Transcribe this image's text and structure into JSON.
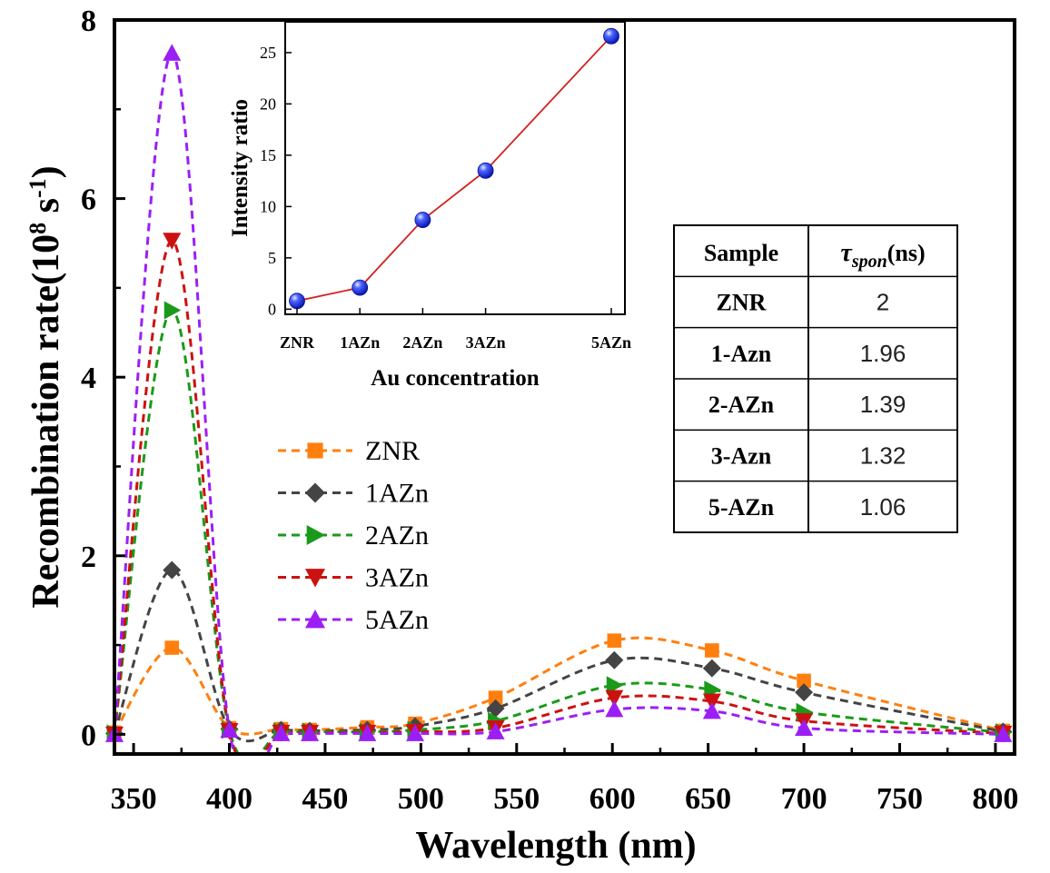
{
  "chart_data": [
    {
      "type": "line",
      "xlabel": "Wavelength (nm)",
      "ylabel_prefix": "Recombination rate(10",
      "ylabel_exp1": "8",
      "ylabel_mid": " s",
      "ylabel_exp2": "-1",
      "ylabel_suffix": ")",
      "xlim": [
        340,
        810
      ],
      "ylim": [
        -0.22,
        8
      ],
      "xticks": [
        350,
        400,
        450,
        500,
        550,
        600,
        650,
        700,
        750,
        800
      ],
      "yticks": [
        0,
        2,
        4,
        6,
        8
      ],
      "x": [
        340,
        370,
        400,
        427,
        442,
        472,
        497,
        539,
        601,
        652,
        700,
        804
      ],
      "legend_location": "center-left",
      "series": [
        {
          "name": "ZNR",
          "color": "#ff7f0e",
          "marker": "square",
          "values": [
            0.02,
            0.97,
            0.07,
            0.06,
            0.05,
            0.08,
            0.12,
            0.41,
            1.05,
            0.94,
            0.6,
            0.04
          ]
        },
        {
          "name": "1AZn",
          "color": "#444444",
          "marker": "diamond",
          "values": [
            0.01,
            1.84,
            0.06,
            0.05,
            0.04,
            0.05,
            0.09,
            0.29,
            0.83,
            0.74,
            0.47,
            0.03
          ]
        },
        {
          "name": "2AZn",
          "color": "#1a9a1a",
          "marker": "triangle-right",
          "values": [
            0.01,
            4.75,
            0.05,
            0.03,
            0.03,
            0.03,
            0.05,
            0.15,
            0.55,
            0.5,
            0.25,
            0.02
          ]
        },
        {
          "name": "3AZn",
          "color": "#cc1111",
          "marker": "triangle-down",
          "values": [
            0.0,
            5.53,
            0.04,
            0.02,
            0.02,
            0.02,
            0.03,
            0.07,
            0.41,
            0.37,
            0.15,
            0.01
          ]
        },
        {
          "name": "5AZn",
          "color": "#9b1ff5",
          "marker": "triangle-up",
          "values": [
            0.0,
            7.63,
            0.05,
            0.01,
            0.01,
            0.01,
            0.01,
            0.03,
            0.28,
            0.26,
            0.07,
            0.0
          ]
        }
      ]
    },
    {
      "type": "line",
      "xlabel": "Au concentration",
      "ylabel": "Intensity ratio",
      "categories": [
        "ZNR",
        "1AZn",
        "2AZn",
        "3AZn",
        "5AZn"
      ],
      "x": [
        0,
        1,
        2,
        3,
        5
      ],
      "values": [
        0.8,
        2.1,
        8.7,
        13.5,
        26.6
      ],
      "ylim": [
        -0.5,
        28
      ],
      "yticks": [
        0,
        5,
        10,
        15,
        20,
        25
      ],
      "line_color": "#d42020",
      "marker_color": "#2233dd"
    },
    {
      "type": "table",
      "header": [
        "Sample",
        "τ",
        "spon",
        "(ns)"
      ],
      "rows": [
        [
          "ZNR",
          "2"
        ],
        [
          "1-Azn",
          "1.96"
        ],
        [
          "2-AZn",
          "1.39"
        ],
        [
          "3-Azn",
          "1.32"
        ],
        [
          "5-AZn",
          "1.06"
        ]
      ]
    }
  ]
}
